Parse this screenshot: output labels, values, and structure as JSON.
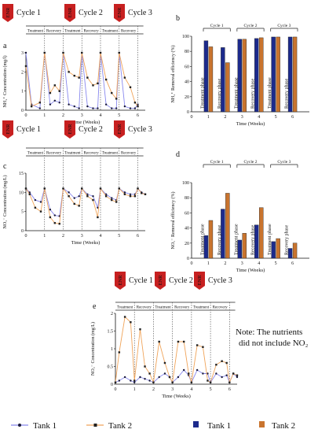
{
  "colors": {
    "tank1_line": "#8888ee",
    "tank2_line": "#f0a45a",
    "tank1_bar": "#1c2a8c",
    "tank2_bar": "#c9742e",
    "enr": "#c72020"
  },
  "enr_label": "ENR",
  "cycle_labels": [
    "Cycle 1",
    "Cycle 2",
    "Cycle 3"
  ],
  "phase_labels": {
    "treatment": "Treatment",
    "recovery": "Recovery",
    "treatment_phase": "Treatment phase",
    "recovery_phase": "Recovery phase"
  },
  "note": [
    "Note: The nutrients",
    "did not include NO₂"
  ],
  "legend": {
    "series_line_1": "Tank 1",
    "series_line_2": "Tank 2",
    "series_bar_1": "Tank 1",
    "series_bar_2": "Tank 2"
  },
  "chart_data": [
    {
      "panel": "a",
      "type": "line",
      "ylabel": "NH₄⁺ Concentration (mg/l)",
      "xlabel": "Time (Weeks)",
      "xlim": [
        0,
        6.4
      ],
      "ylim": [
        0,
        3
      ],
      "yticks": [
        0,
        1,
        2,
        3
      ],
      "xticks": [
        1,
        2,
        3,
        4,
        5,
        6
      ],
      "series": [
        {
          "name": "Tank 1",
          "x": [
            0,
            0.3,
            0.75,
            1.0,
            1.3,
            1.55,
            1.8,
            2.0,
            2.3,
            2.6,
            2.85,
            3.0,
            3.3,
            3.6,
            3.85,
            4.0,
            4.3,
            4.6,
            4.85,
            5.0,
            5.3,
            5.6,
            5.85,
            6.0
          ],
          "y": [
            3,
            0.3,
            0.1,
            3,
            0.3,
            0.5,
            0.4,
            3,
            0.3,
            0.2,
            0.1,
            3,
            0.2,
            0.1,
            0.1,
            3,
            0.3,
            0.1,
            0.1,
            3,
            0.2,
            0.1,
            0.1,
            0.3
          ]
        },
        {
          "name": "Tank 2",
          "x": [
            0,
            0.3,
            0.75,
            1.0,
            1.3,
            1.55,
            1.8,
            2.0,
            2.3,
            2.6,
            2.85,
            3.0,
            3.3,
            3.6,
            3.85,
            4.0,
            4.3,
            4.6,
            4.85,
            5.0,
            5.3,
            5.6,
            5.85,
            6.0
          ],
          "y": [
            2.3,
            0.2,
            0.4,
            3,
            0.9,
            1.3,
            1.0,
            3,
            2.0,
            1.8,
            1.7,
            3,
            1.7,
            1.3,
            1.4,
            3,
            1.6,
            0.9,
            0.6,
            3,
            1.7,
            1.2,
            0.4,
            0.2
          ]
        }
      ]
    },
    {
      "panel": "b",
      "type": "bar",
      "ylabel": "NH₄⁺ Removal efficiency (%)",
      "xlabel": "Time (Weeks)",
      "categories": [
        "1",
        "2",
        "3",
        "4",
        "5",
        "6"
      ],
      "ylim": [
        0,
        100
      ],
      "yticks": [
        0,
        20,
        40,
        60,
        80,
        100
      ],
      "xlim": [
        0,
        7
      ],
      "phases": [
        "Treatment phase",
        "Recovery phase",
        "Treatment phase",
        "Recovery phase",
        "Treatment phase",
        "Recovery phase"
      ],
      "series": [
        {
          "name": "Tank 1",
          "values": [
            94,
            85,
            96,
            97,
            99,
            99
          ]
        },
        {
          "name": "Tank 2",
          "values": [
            86,
            65,
            96,
            98,
            99,
            99
          ]
        }
      ]
    },
    {
      "panel": "c",
      "type": "line",
      "ylabel": "NO₃⁻ Concentration (mg/L)",
      "xlabel": "Time (Weeks)",
      "xlim": [
        0,
        6.4
      ],
      "ylim": [
        0,
        15
      ],
      "yticks": [
        0,
        5,
        10,
        15
      ],
      "xticks": [
        1,
        2,
        3,
        4,
        5,
        6
      ],
      "series": [
        {
          "name": "Tank 1",
          "x": [
            0,
            0.2,
            0.5,
            0.8,
            1.0,
            1.3,
            1.55,
            1.8,
            2.0,
            2.3,
            2.6,
            2.85,
            3.0,
            3.3,
            3.6,
            3.85,
            4.0,
            4.3,
            4.6,
            4.85,
            5.0,
            5.3,
            5.6,
            5.85,
            6.0,
            6.2,
            6.4
          ],
          "y": [
            11,
            10,
            8,
            7.5,
            11,
            5.5,
            4,
            3.8,
            11,
            10,
            8.5,
            9,
            11,
            9.5,
            9,
            6,
            11,
            9.5,
            8.5,
            8,
            11,
            10,
            9.5,
            9.5,
            11,
            10,
            9.5
          ]
        },
        {
          "name": "Tank 2",
          "x": [
            0,
            0.2,
            0.5,
            0.8,
            1.0,
            1.3,
            1.55,
            1.8,
            2.0,
            2.3,
            2.6,
            2.85,
            3.0,
            3.3,
            3.6,
            3.85,
            4.0,
            4.3,
            4.6,
            4.85,
            5.0,
            5.3,
            5.6,
            5.85,
            6.0,
            6.2,
            6.4
          ],
          "y": [
            11,
            9.5,
            6,
            5,
            11,
            3.5,
            2,
            1.8,
            11,
            9,
            7,
            6.5,
            11,
            9,
            8,
            3.5,
            11,
            9,
            8,
            7.5,
            11,
            9.5,
            9,
            9,
            11,
            9.8,
            9.5
          ]
        }
      ]
    },
    {
      "panel": "d",
      "type": "bar",
      "ylabel": "NO₃⁻ Removal efficiency (%)",
      "xlabel": "Time (Weeks)",
      "categories": [
        "1",
        "2",
        "3",
        "4",
        "5",
        "6"
      ],
      "ylim": [
        0,
        100
      ],
      "yticks": [
        0,
        20,
        40,
        60,
        80,
        100
      ],
      "xlim": [
        0,
        7
      ],
      "phases": [
        "Treatment phase",
        "Recovery phase",
        "Treatment phase",
        "Recovery phase",
        "Treatment phase",
        "Recovery phase"
      ],
      "series": [
        {
          "name": "Tank 1",
          "values": [
            30,
            65,
            24,
            44,
            22,
            13
          ]
        },
        {
          "name": "Tank 2",
          "values": [
            50,
            86,
            33,
            67,
            26,
            20
          ]
        }
      ]
    },
    {
      "panel": "e",
      "type": "line",
      "ylabel": "NO₂⁻ Concentration (mg/L)",
      "xlabel": "Time (Weeks)",
      "xlim": [
        0,
        6.4
      ],
      "ylim": [
        0,
        2.0
      ],
      "yticks": [
        0,
        0.5,
        1.0,
        1.5,
        2.0
      ],
      "xticks": [
        1,
        2,
        3,
        4,
        5,
        6
      ],
      "series": [
        {
          "name": "Tank 1",
          "x": [
            0,
            0.2,
            0.5,
            0.8,
            1.0,
            1.3,
            1.55,
            1.8,
            2.0,
            2.3,
            2.6,
            2.85,
            3.0,
            3.3,
            3.6,
            3.85,
            4.0,
            4.3,
            4.6,
            4.85,
            5.0,
            5.3,
            5.6,
            5.85,
            6.0,
            6.2,
            6.4
          ],
          "y": [
            0.05,
            0.1,
            0.2,
            0.1,
            0.05,
            0.2,
            0.15,
            0.1,
            0.05,
            0.2,
            0.3,
            0.2,
            0.05,
            0.2,
            0.4,
            0.25,
            0.05,
            0.4,
            0.3,
            0.3,
            0.05,
            0.3,
            0.2,
            0.25,
            0.05,
            0.3,
            0.2
          ]
        },
        {
          "name": "Tank 2",
          "x": [
            0,
            0.2,
            0.5,
            0.8,
            1.0,
            1.3,
            1.55,
            1.8,
            2.0,
            2.3,
            2.6,
            2.85,
            3.0,
            3.3,
            3.6,
            3.85,
            4.0,
            4.3,
            4.6,
            4.85,
            5.0,
            5.3,
            5.6,
            5.85,
            6.0,
            6.2,
            6.4
          ],
          "y": [
            0.05,
            0.9,
            1.9,
            1.75,
            0.1,
            1.55,
            0.5,
            0.3,
            0.05,
            1.2,
            0.6,
            0.2,
            0.05,
            1.2,
            1.2,
            0.3,
            0.05,
            1.1,
            1.05,
            0.1,
            0.05,
            0.55,
            0.65,
            0.6,
            0.05,
            0.3,
            0.25
          ]
        }
      ]
    }
  ]
}
